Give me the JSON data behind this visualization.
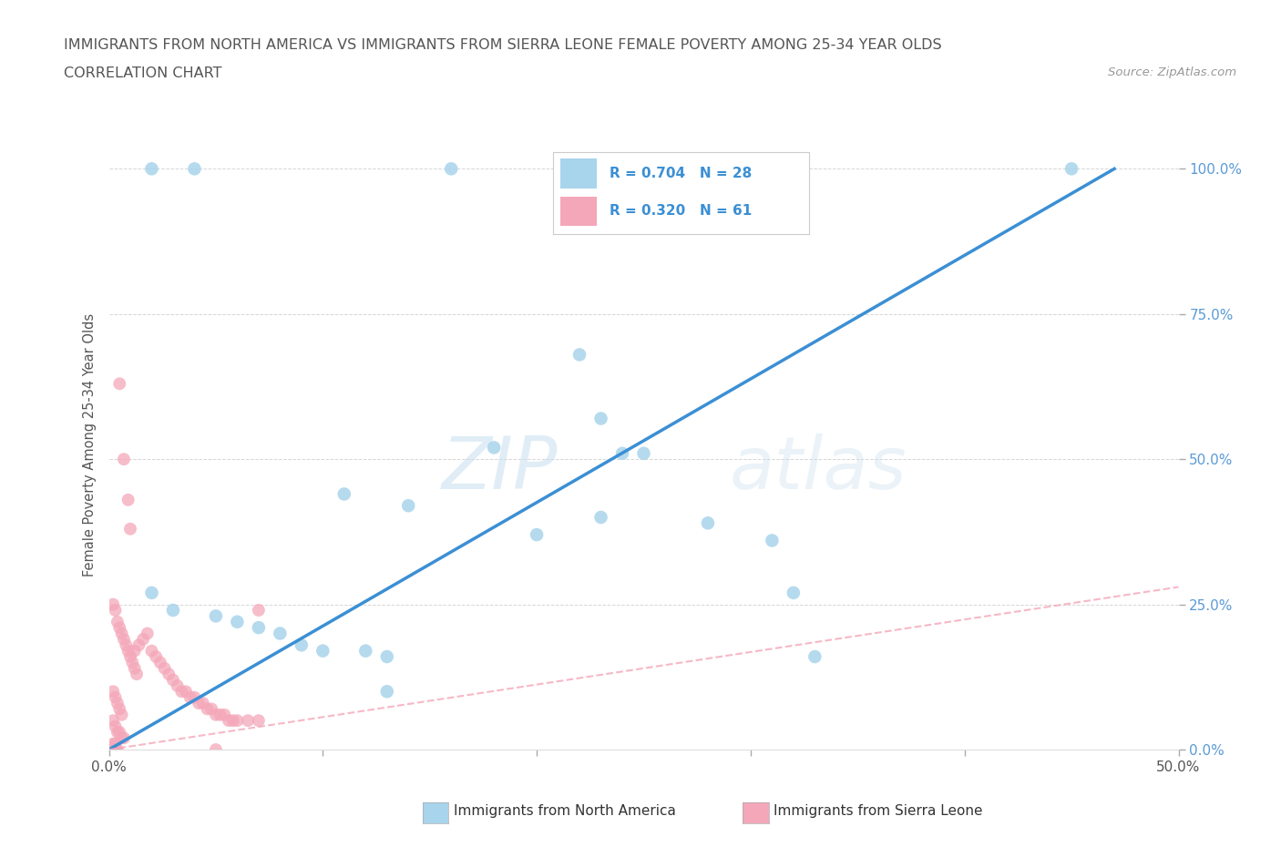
{
  "title_line1": "IMMIGRANTS FROM NORTH AMERICA VS IMMIGRANTS FROM SIERRA LEONE FEMALE POVERTY AMONG 25-34 YEAR OLDS",
  "title_line2": "CORRELATION CHART",
  "source_text": "Source: ZipAtlas.com",
  "ylabel": "Female Poverty Among 25-34 Year Olds",
  "watermark_zip": "ZIP",
  "watermark_atlas": "atlas",
  "xlim": [
    0.0,
    0.5
  ],
  "ylim": [
    0.0,
    1.05
  ],
  "xtick_pos": [
    0.0,
    0.1,
    0.2,
    0.3,
    0.4,
    0.5
  ],
  "xtick_labels": [
    "0.0%",
    "",
    "",
    "",
    "",
    "50.0%"
  ],
  "ytick_pos": [
    0.0,
    0.25,
    0.5,
    0.75,
    1.0
  ],
  "ytick_labels_right": [
    "0.0%",
    "25.0%",
    "50.0%",
    "75.0%",
    "100.0%"
  ],
  "legend_R_blue": "R = 0.704",
  "legend_N_blue": "N = 28",
  "legend_R_pink": "R = 0.320",
  "legend_N_pink": "N = 61",
  "blue_scatter_color": "#A8D4EC",
  "pink_scatter_color": "#F4A7B9",
  "blue_line_color": "#3B8FD4",
  "pink_line_color": "#F4A7B9",
  "grid_color": "#CCCCCC",
  "right_tick_color": "#5B9BD5",
  "legend_text_color": "#3B8FD4",
  "legend_R_color": "#333333",
  "blue_line_x0": 0.0,
  "blue_line_y0": 0.0,
  "blue_line_x1": 0.47,
  "blue_line_y1": 1.0,
  "pink_line_x0": 0.0,
  "pink_line_y0": 0.0,
  "pink_line_x1": 0.5,
  "pink_line_y1": 0.28,
  "blue_scatter_x": [
    0.02,
    0.04,
    0.16,
    0.22,
    0.23,
    0.18,
    0.24,
    0.23,
    0.2,
    0.31,
    0.32,
    0.02,
    0.03,
    0.05,
    0.06,
    0.07,
    0.08,
    0.09,
    0.1,
    0.12,
    0.13,
    0.33,
    0.45,
    0.13,
    0.14,
    0.25,
    0.11,
    0.28
  ],
  "blue_scatter_y": [
    1.0,
    1.0,
    1.0,
    0.68,
    0.57,
    0.52,
    0.51,
    0.4,
    0.37,
    0.36,
    0.27,
    0.27,
    0.24,
    0.23,
    0.22,
    0.21,
    0.2,
    0.18,
    0.17,
    0.17,
    0.16,
    0.16,
    1.0,
    0.1,
    0.42,
    0.51,
    0.44,
    0.39
  ],
  "pink_scatter_x": [
    0.005,
    0.007,
    0.009,
    0.01,
    0.012,
    0.014,
    0.016,
    0.018,
    0.02,
    0.022,
    0.024,
    0.026,
    0.028,
    0.03,
    0.032,
    0.034,
    0.036,
    0.038,
    0.04,
    0.042,
    0.044,
    0.046,
    0.048,
    0.05,
    0.052,
    0.054,
    0.056,
    0.058,
    0.06,
    0.065,
    0.07,
    0.002,
    0.003,
    0.004,
    0.005,
    0.006,
    0.007,
    0.008,
    0.009,
    0.01,
    0.011,
    0.012,
    0.013,
    0.002,
    0.003,
    0.004,
    0.005,
    0.006,
    0.002,
    0.003,
    0.004,
    0.005,
    0.006,
    0.007,
    0.002,
    0.003,
    0.002,
    0.003,
    0.004,
    0.05,
    0.07
  ],
  "pink_scatter_y": [
    0.63,
    0.5,
    0.43,
    0.38,
    0.17,
    0.18,
    0.19,
    0.2,
    0.17,
    0.16,
    0.15,
    0.14,
    0.13,
    0.12,
    0.11,
    0.1,
    0.1,
    0.09,
    0.09,
    0.08,
    0.08,
    0.07,
    0.07,
    0.06,
    0.06,
    0.06,
    0.05,
    0.05,
    0.05,
    0.05,
    0.05,
    0.25,
    0.24,
    0.22,
    0.21,
    0.2,
    0.19,
    0.18,
    0.17,
    0.16,
    0.15,
    0.14,
    0.13,
    0.1,
    0.09,
    0.08,
    0.07,
    0.06,
    0.05,
    0.04,
    0.03,
    0.03,
    0.02,
    0.02,
    0.01,
    0.01,
    0.0,
    0.0,
    0.0,
    0.0,
    0.24
  ]
}
